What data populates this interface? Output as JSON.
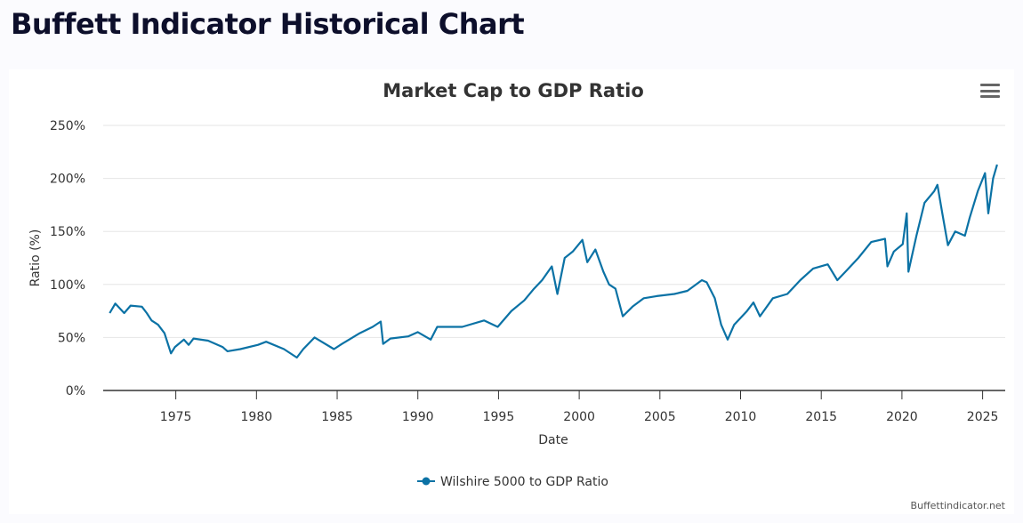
{
  "page": {
    "title": "Buffett Indicator Historical Chart"
  },
  "menu_icon": "hamburger-menu-icon",
  "credit": "Buffettindicator.net",
  "chart_data": {
    "type": "line",
    "title": "Market Cap to GDP Ratio",
    "xlabel": "Date",
    "ylabel": "Ratio (%)",
    "xlim": [
      1970.5,
      2026.4
    ],
    "ylim": [
      0,
      250
    ],
    "x_ticks": [
      "1975",
      "1980",
      "1985",
      "1990",
      "1995",
      "2000",
      "2005",
      "2010",
      "2015",
      "2020",
      "2025"
    ],
    "y_ticks": [
      "0%",
      "50%",
      "100%",
      "150%",
      "200%",
      "250%"
    ],
    "grid": true,
    "legend": "bottom",
    "color": "#0b72a5",
    "series": [
      {
        "name": "Wilshire 5000 to GDP Ratio",
        "x": [
          1970.9,
          1971.25,
          1971.8,
          1972.2,
          1972.9,
          1973.2,
          1973.5,
          1973.9,
          1974.3,
          1974.7,
          1974.95,
          1975.5,
          1975.8,
          1976.1,
          1977,
          1977.9,
          1978.2,
          1979,
          1980.1,
          1980.6,
          1981.7,
          1982.5,
          1982.9,
          1983.6,
          1984.8,
          1985.3,
          1986.4,
          1987.2,
          1987.7,
          1987.85,
          1988.3,
          1989.4,
          1990,
          1990.8,
          1991.2,
          1992.75,
          1994.1,
          1994.95,
          1995.8,
          1996.6,
          1997.2,
          1997.7,
          1998.3,
          1998.65,
          1999.1,
          1999.6,
          2000.2,
          2000.5,
          2001,
          2001.5,
          2001.85,
          2002.25,
          2002.7,
          2003.3,
          2004,
          2004.8,
          2005.9,
          2006.7,
          2007.6,
          2007.9,
          2008.4,
          2008.8,
          2009.2,
          2009.6,
          2010.4,
          2010.8,
          2011.2,
          2012,
          2012.9,
          2013.7,
          2014.5,
          2015.4,
          2016,
          2016.5,
          2017.3,
          2018.1,
          2018.95,
          2019.1,
          2019.5,
          2020.05,
          2020.3,
          2020.4,
          2020.9,
          2021.4,
          2022,
          2022.2,
          2022.5,
          2022.85,
          2023.3,
          2023.9,
          2024.2,
          2024.7,
          2025.15,
          2025.35,
          2025.65,
          2025.9
        ],
        "y": [
          73,
          82,
          73,
          80,
          79,
          73,
          66,
          62,
          54,
          35,
          41,
          48,
          43,
          49,
          47,
          41,
          37,
          39,
          43,
          46,
          39,
          31,
          39,
          50,
          39,
          44,
          54,
          60,
          65,
          44,
          49,
          51,
          55,
          48,
          60,
          60,
          66,
          60,
          75,
          85,
          96,
          104,
          117,
          91,
          125,
          131,
          142,
          121,
          133,
          112,
          100,
          96,
          70,
          79,
          87,
          89,
          91,
          94,
          104,
          102,
          87,
          62,
          48,
          62,
          75,
          83,
          70,
          87,
          91,
          104,
          115,
          119,
          104,
          112,
          125,
          140,
          143,
          117,
          131,
          138,
          167,
          112,
          146,
          177,
          188,
          194,
          167,
          137,
          150,
          146,
          163,
          188,
          205,
          167,
          200,
          213
        ]
      }
    ]
  }
}
